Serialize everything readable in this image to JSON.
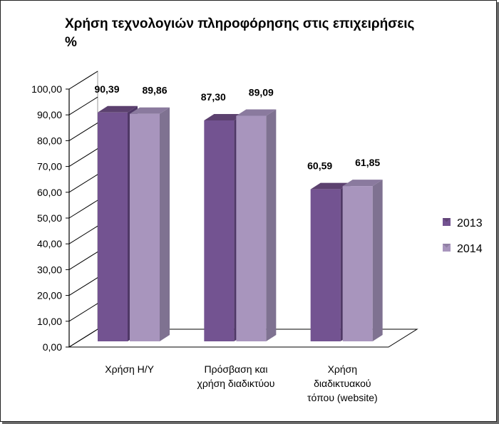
{
  "chart_data": {
    "type": "bar",
    "title": "Χρήση τεχνολογιών πληροφόρησης στις επιχειρήσεις",
    "subtitle": "%",
    "categories": [
      [
        "Χρήση Η/Υ"
      ],
      [
        "Πρόσβαση και",
        "χρήση διαδικτύου"
      ],
      [
        "Χρήση",
        "διαδικτυακού",
        "τόπου (website)"
      ]
    ],
    "series": [
      {
        "name": "2013",
        "values": [
          90.39,
          87.3,
          60.59
        ],
        "labels": [
          "90,39",
          "87,30",
          "60,59"
        ],
        "color": "#735391",
        "side": "#4f3866",
        "top": "#5c416f"
      },
      {
        "name": "2014",
        "values": [
          89.86,
          89.09,
          61.85
        ],
        "labels": [
          "89,86",
          "89,09",
          "61,85"
        ],
        "color": "#a895bd",
        "side": "#7f7291",
        "top": "#8a7a9e"
      }
    ],
    "ylim": [
      0,
      100
    ],
    "yticks": [
      "0,00",
      "10,00",
      "20,00",
      "30,00",
      "40,00",
      "50,00",
      "60,00",
      "70,00",
      "80,00",
      "90,00",
      "100,00"
    ],
    "grid": false,
    "legend": "right"
  }
}
